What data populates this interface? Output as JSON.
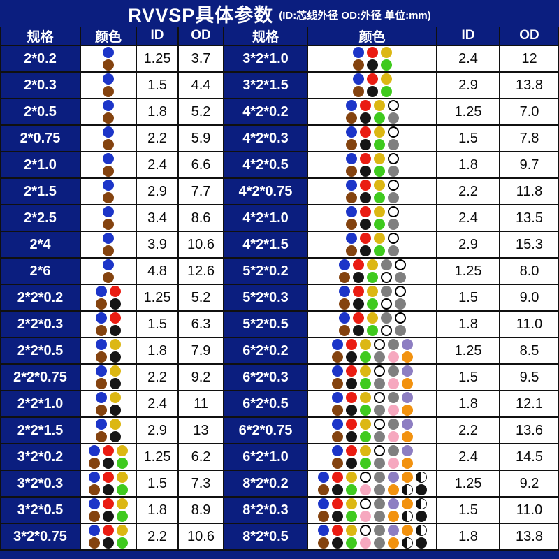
{
  "title": {
    "main": "RVVSP具体参数",
    "sub": "(ID:芯线外径  OD:外径 单位:mm)"
  },
  "headers": {
    "spec": "规格",
    "color": "颜色",
    "id": "ID",
    "od": "OD"
  },
  "palette": {
    "blue": "#1c35c8",
    "brown": "#84431072",
    "red": "#ea1c12",
    "black": "#161616",
    "yellow": "#dcb713",
    "green": "#3fca1e",
    "white": "#ffffff",
    "gray": "#7f7f7f",
    "purple": "#8d7ec2",
    "pink": "#f6a8bf",
    "orange": "#f2920f",
    "halfbw": "half-black-white",
    "table_navy": "#0b1e7f",
    "grid_line": "#101010"
  },
  "left_rows": [
    {
      "spec": "2*0.2",
      "id": "1.25",
      "od": "3.7",
      "dots": [
        [
          "blue"
        ],
        [
          "brown"
        ]
      ]
    },
    {
      "spec": "2*0.3",
      "id": "1.5",
      "od": "4.4",
      "dots": [
        [
          "blue"
        ],
        [
          "brown"
        ]
      ]
    },
    {
      "spec": "2*0.5",
      "id": "1.8",
      "od": "5.2",
      "dots": [
        [
          "blue"
        ],
        [
          "brown"
        ]
      ]
    },
    {
      "spec": "2*0.75",
      "id": "2.2",
      "od": "5.9",
      "dots": [
        [
          "blue"
        ],
        [
          "brown"
        ]
      ]
    },
    {
      "spec": "2*1.0",
      "id": "2.4",
      "od": "6.6",
      "dots": [
        [
          "blue"
        ],
        [
          "brown"
        ]
      ]
    },
    {
      "spec": "2*1.5",
      "id": "2.9",
      "od": "7.7",
      "dots": [
        [
          "blue"
        ],
        [
          "brown"
        ]
      ]
    },
    {
      "spec": "2*2.5",
      "id": "3.4",
      "od": "8.6",
      "dots": [
        [
          "blue"
        ],
        [
          "brown"
        ]
      ]
    },
    {
      "spec": "2*4",
      "id": "3.9",
      "od": "10.6",
      "dots": [
        [
          "blue"
        ],
        [
          "brown"
        ]
      ]
    },
    {
      "spec": "2*6",
      "id": "4.8",
      "od": "12.6",
      "dots": [
        [
          "blue"
        ],
        [
          "brown"
        ]
      ]
    },
    {
      "spec": "2*2*0.2",
      "id": "1.25",
      "od": "5.2",
      "dots": [
        [
          "blue",
          "red"
        ],
        [
          "brown",
          "black"
        ]
      ]
    },
    {
      "spec": "2*2*0.3",
      "id": "1.5",
      "od": "6.3",
      "dots": [
        [
          "blue",
          "red"
        ],
        [
          "brown",
          "black"
        ]
      ]
    },
    {
      "spec": "2*2*0.5",
      "id": "1.8",
      "od": "7.9",
      "dots": [
        [
          "blue",
          "yellow"
        ],
        [
          "brown",
          "black"
        ]
      ]
    },
    {
      "spec": "2*2*0.75",
      "id": "2.2",
      "od": "9.2",
      "dots": [
        [
          "blue",
          "yellow"
        ],
        [
          "brown",
          "black"
        ]
      ]
    },
    {
      "spec": "2*2*1.0",
      "id": "2.4",
      "od": "11",
      "dots": [
        [
          "blue",
          "yellow"
        ],
        [
          "brown",
          "black"
        ]
      ]
    },
    {
      "spec": "2*2*1.5",
      "id": "2.9",
      "od": "13",
      "dots": [
        [
          "blue",
          "yellow"
        ],
        [
          "brown",
          "black"
        ]
      ]
    },
    {
      "spec": "3*2*0.2",
      "id": "1.25",
      "od": "6.2",
      "dots": [
        [
          "blue",
          "red",
          "yellow"
        ],
        [
          "brown",
          "black",
          "green"
        ]
      ]
    },
    {
      "spec": "3*2*0.3",
      "id": "1.5",
      "od": "7.3",
      "dots": [
        [
          "blue",
          "red",
          "yellow"
        ],
        [
          "brown",
          "black",
          "green"
        ]
      ]
    },
    {
      "spec": "3*2*0.5",
      "id": "1.8",
      "od": "8.9",
      "dots": [
        [
          "blue",
          "red",
          "yellow"
        ],
        [
          "brown",
          "black",
          "green"
        ]
      ]
    },
    {
      "spec": "3*2*0.75",
      "id": "2.2",
      "od": "10.6",
      "dots": [
        [
          "blue",
          "red",
          "yellow"
        ],
        [
          "brown",
          "black",
          "green"
        ]
      ]
    }
  ],
  "right_rows": [
    {
      "spec": "3*2*1.0",
      "id": "2.4",
      "od": "12",
      "dots": [
        [
          "blue",
          "red",
          "yellow"
        ],
        [
          "brown",
          "black",
          "green"
        ]
      ]
    },
    {
      "spec": "3*2*1.5",
      "id": "2.9",
      "od": "13.8",
      "dots": [
        [
          "blue",
          "red",
          "yellow"
        ],
        [
          "brown",
          "black",
          "green"
        ]
      ]
    },
    {
      "spec": "4*2*0.2",
      "id": "1.25",
      "od": "7.0",
      "dots": [
        [
          "blue",
          "red",
          "yellow",
          "white"
        ],
        [
          "brown",
          "black",
          "green",
          "gray"
        ]
      ]
    },
    {
      "spec": "4*2*0.3",
      "id": "1.5",
      "od": "7.8",
      "dots": [
        [
          "blue",
          "red",
          "yellow",
          "white"
        ],
        [
          "brown",
          "black",
          "green",
          "gray"
        ]
      ]
    },
    {
      "spec": "4*2*0.5",
      "id": "1.8",
      "od": "9.7",
      "dots": [
        [
          "blue",
          "red",
          "yellow",
          "white"
        ],
        [
          "brown",
          "black",
          "green",
          "gray"
        ]
      ]
    },
    {
      "spec": "4*2*0.75",
      "id": "2.2",
      "od": "11.8",
      "dots": [
        [
          "blue",
          "red",
          "yellow",
          "white"
        ],
        [
          "brown",
          "black",
          "green",
          "gray"
        ]
      ]
    },
    {
      "spec": "4*2*1.0",
      "id": "2.4",
      "od": "13.5",
      "dots": [
        [
          "blue",
          "red",
          "yellow",
          "white"
        ],
        [
          "brown",
          "black",
          "green",
          "gray"
        ]
      ]
    },
    {
      "spec": "4*2*1.5",
      "id": "2.9",
      "od": "15.3",
      "dots": [
        [
          "blue",
          "red",
          "yellow",
          "white"
        ],
        [
          "brown",
          "black",
          "green",
          "gray"
        ]
      ]
    },
    {
      "spec": "5*2*0.2",
      "id": "1.25",
      "od": "8.0",
      "dots": [
        [
          "blue",
          "red",
          "yellow",
          "gray",
          "white"
        ],
        [
          "brown",
          "black",
          "green",
          "white",
          "gray"
        ]
      ]
    },
    {
      "spec": "5*2*0.3",
      "id": "1.5",
      "od": "9.0",
      "dots": [
        [
          "blue",
          "red",
          "yellow",
          "gray",
          "white"
        ],
        [
          "brown",
          "black",
          "green",
          "white",
          "gray"
        ]
      ]
    },
    {
      "spec": "5*2*0.5",
      "id": "1.8",
      "od": "11.0",
      "dots": [
        [
          "blue",
          "red",
          "yellow",
          "gray",
          "white"
        ],
        [
          "brown",
          "black",
          "green",
          "white",
          "gray"
        ]
      ]
    },
    {
      "spec": "6*2*0.2",
      "id": "1.25",
      "od": "8.5",
      "dots": [
        [
          "blue",
          "red",
          "yellow",
          "white",
          "gray",
          "purple"
        ],
        [
          "brown",
          "black",
          "green",
          "gray",
          "pink",
          "orange"
        ]
      ]
    },
    {
      "spec": "6*2*0.3",
      "id": "1.5",
      "od": "9.5",
      "dots": [
        [
          "blue",
          "red",
          "yellow",
          "white",
          "gray",
          "purple"
        ],
        [
          "brown",
          "black",
          "green",
          "gray",
          "pink",
          "orange"
        ]
      ]
    },
    {
      "spec": "6*2*0.5",
      "id": "1.8",
      "od": "12.1",
      "dots": [
        [
          "blue",
          "red",
          "yellow",
          "white",
          "gray",
          "purple"
        ],
        [
          "brown",
          "black",
          "green",
          "gray",
          "pink",
          "orange"
        ]
      ]
    },
    {
      "spec": "6*2*0.75",
      "id": "2.2",
      "od": "13.6",
      "dots": [
        [
          "blue",
          "red",
          "yellow",
          "white",
          "gray",
          "purple"
        ],
        [
          "brown",
          "black",
          "green",
          "gray",
          "pink",
          "orange"
        ]
      ]
    },
    {
      "spec": "6*2*1.0",
      "id": "2.4",
      "od": "14.5",
      "dots": [
        [
          "blue",
          "red",
          "yellow",
          "white",
          "gray",
          "purple"
        ],
        [
          "brown",
          "black",
          "green",
          "gray",
          "pink",
          "orange"
        ]
      ]
    },
    {
      "spec": "8*2*0.2",
      "id": "1.25",
      "od": "9.2",
      "dots": [
        [
          "blue",
          "red",
          "yellow",
          "white",
          "gray",
          "purple",
          "orange",
          "halfbw"
        ],
        [
          "brown",
          "black",
          "green",
          "pink",
          "gray",
          "orange",
          "halfbw",
          "black"
        ]
      ]
    },
    {
      "spec": "8*2*0.3",
      "id": "1.5",
      "od": "11.0",
      "dots": [
        [
          "blue",
          "red",
          "yellow",
          "white",
          "gray",
          "purple",
          "orange",
          "halfbw"
        ],
        [
          "brown",
          "black",
          "green",
          "pink",
          "gray",
          "orange",
          "halfbw",
          "black"
        ]
      ]
    },
    {
      "spec": "8*2*0.5",
      "id": "1.8",
      "od": "13.8",
      "dots": [
        [
          "blue",
          "red",
          "yellow",
          "white",
          "gray",
          "purple",
          "orange",
          "halfbw"
        ],
        [
          "brown",
          "black",
          "green",
          "pink",
          "gray",
          "orange",
          "halfbw",
          "black"
        ]
      ]
    }
  ]
}
